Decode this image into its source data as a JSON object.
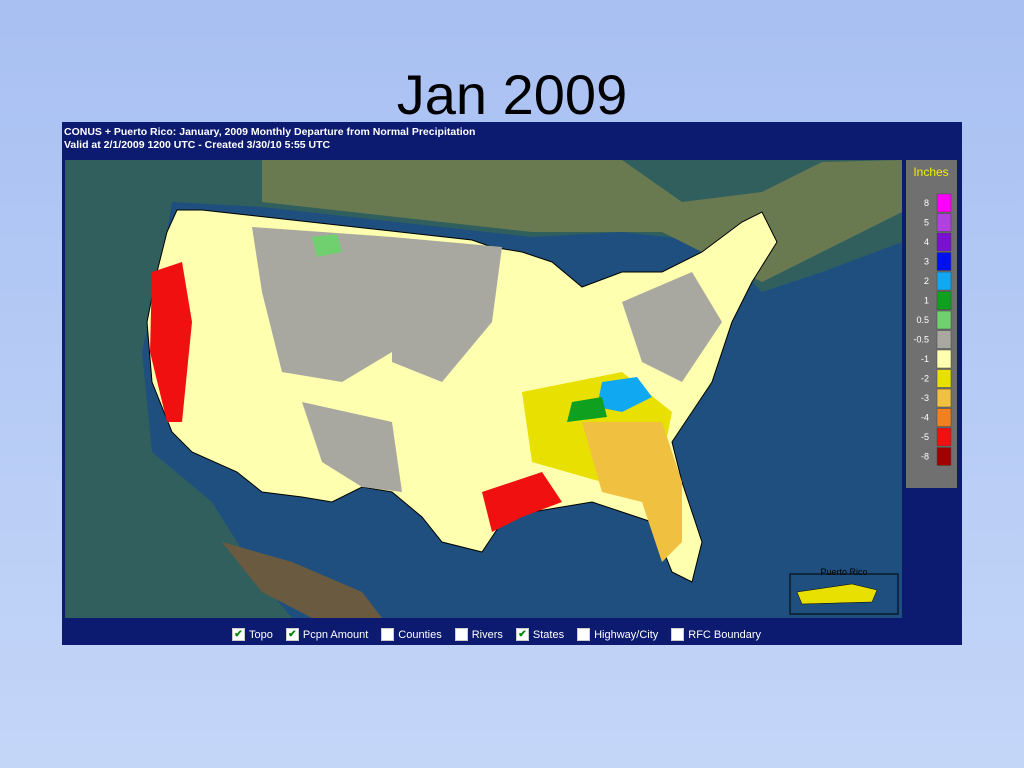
{
  "slide": {
    "title": "Jan 2009"
  },
  "map": {
    "header": [
      "CONUS + Puerto Rico: January, 2009 Monthly Departure from Normal Precipitation",
      "Valid at 2/1/2009 1200 UTC - Created 3/30/10 5:55 UTC"
    ],
    "legend": {
      "title": "Inches",
      "items": [
        {
          "label": "8",
          "color": "#ff00ff"
        },
        {
          "label": "5",
          "color": "#b040e0"
        },
        {
          "label": "4",
          "color": "#7a10d0"
        },
        {
          "label": "3",
          "color": "#0010f0"
        },
        {
          "label": "2",
          "color": "#10a8f0"
        },
        {
          "label": "1",
          "color": "#10a020"
        },
        {
          "label": "0.5",
          "color": "#70d070"
        },
        {
          "label": "-0.5",
          "color": "#a8a8a0"
        },
        {
          "label": "-1",
          "color": "#ffffb0"
        },
        {
          "label": "-2",
          "color": "#e8e000"
        },
        {
          "label": "-3",
          "color": "#f0c040"
        },
        {
          "label": "-4",
          "color": "#f08020"
        },
        {
          "label": "-5",
          "color": "#f01010"
        },
        {
          "label": "-8",
          "color": "#a00000"
        }
      ]
    },
    "inset_label": "Puerto Rico",
    "options": [
      {
        "label": "Topo",
        "checked": true
      },
      {
        "label": "Pcpn Amount",
        "checked": true
      },
      {
        "label": "Counties",
        "checked": false
      },
      {
        "label": "Rivers",
        "checked": false
      },
      {
        "label": "States",
        "checked": true
      },
      {
        "label": "Highway/City",
        "checked": false
      },
      {
        "label": "RFC Boundary",
        "checked": false
      }
    ]
  }
}
